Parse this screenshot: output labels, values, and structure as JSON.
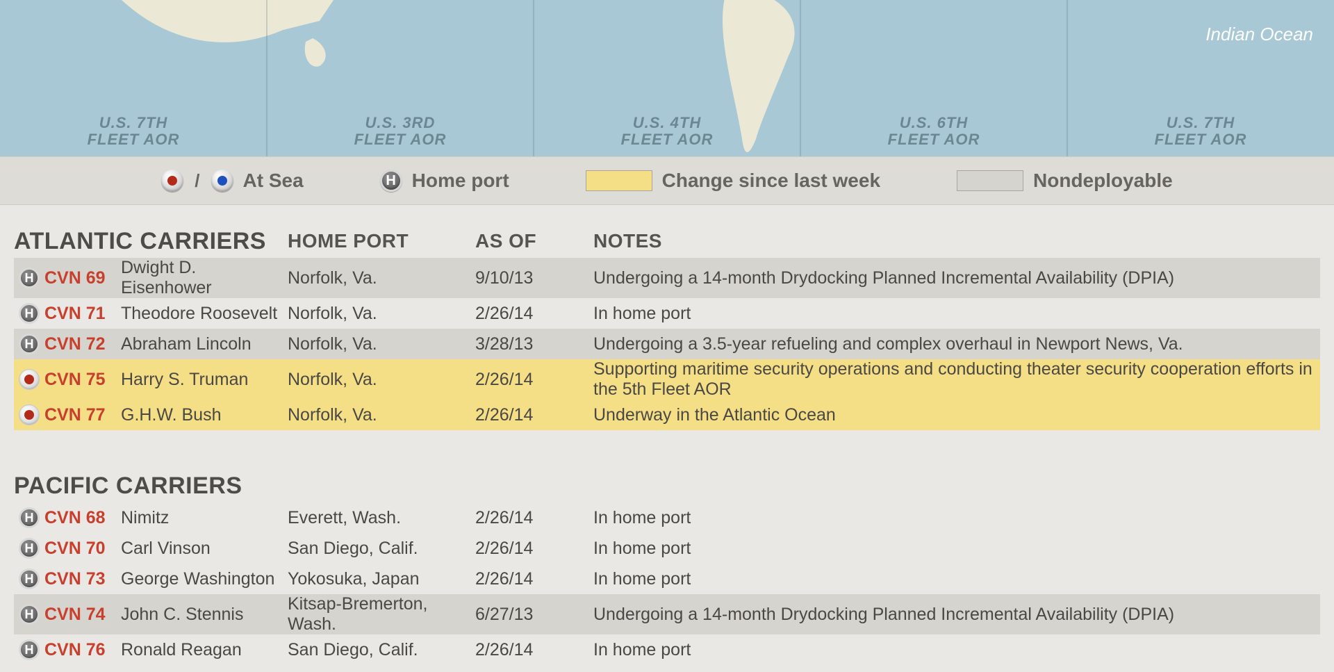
{
  "colors": {
    "page_bg": "#e9e8e4",
    "map_water": "#a7c8d4",
    "map_land": "#ece8d6",
    "ocean_label": "#ffffff",
    "fleet_label": "#6b8793",
    "legend_bg": "#dedcd7",
    "legend_text": "#676560",
    "row_nondeploy": "#d6d4cf",
    "row_changed": "#f4de86",
    "code": "#c8402d",
    "text": "#4a4844",
    "marker_sea_red": "#b42a1a",
    "marker_sea_blue": "#1f4fbf",
    "marker_home": "#6c6c6c"
  },
  "map": {
    "ocean_label": "Indian\nOcean",
    "fleets": [
      "U.S. 7TH\nFLEET AOR",
      "U.S. 3RD\nFLEET AOR",
      "U.S. 4TH\nFLEET AOR",
      "U.S. 6TH\nFLEET AOR",
      "U.S. 7TH\nFLEET AOR"
    ]
  },
  "legend": {
    "at_sea": "At Sea",
    "home_port": "Home port",
    "changed": "Change since last week",
    "nondeploy": "Nondeployable"
  },
  "columns": {
    "homeport": "Home Port",
    "asof": "As Of",
    "notes": "Notes"
  },
  "sections": [
    {
      "title": "ATLANTIC CARRIERS",
      "rows": [
        {
          "status": "home",
          "state": "nondeploy",
          "code": "CVN 69",
          "name": "Dwight D. Eisenhower",
          "homeport": "Norfolk, Va.",
          "asof": "9/10/13",
          "notes": "Undergoing a 14-month Drydocking Planned Incremental Availability (DPIA)"
        },
        {
          "status": "home",
          "state": "normal",
          "code": "CVN 71",
          "name": "Theodore Roosevelt",
          "homeport": "Norfolk, Va.",
          "asof": "2/26/14",
          "notes": "In home port"
        },
        {
          "status": "home",
          "state": "nondeploy",
          "code": "CVN 72",
          "name": "Abraham Lincoln",
          "homeport": "Norfolk, Va.",
          "asof": "3/28/13",
          "notes": "Undergoing a 3.5-year refueling and complex overhaul in Newport News, Va."
        },
        {
          "status": "sea",
          "state": "changed",
          "code": "CVN 75",
          "name": "Harry S. Truman",
          "homeport": "Norfolk, Va.",
          "asof": "2/26/14",
          "notes": "Supporting maritime security operations and conducting theater security cooperation efforts in the 5th Fleet AOR"
        },
        {
          "status": "sea",
          "state": "changed",
          "code": "CVN 77",
          "name": "G.H.W. Bush",
          "homeport": "Norfolk, Va.",
          "asof": "2/26/14",
          "notes": "Underway in the Atlantic Ocean"
        }
      ]
    },
    {
      "title": "PACIFIC CARRIERS",
      "rows": [
        {
          "status": "home",
          "state": "normal",
          "code": "CVN 68",
          "name": "Nimitz",
          "homeport": "Everett, Wash.",
          "asof": "2/26/14",
          "notes": "In home port"
        },
        {
          "status": "home",
          "state": "normal",
          "code": "CVN 70",
          "name": "Carl Vinson",
          "homeport": "San Diego, Calif.",
          "asof": "2/26/14",
          "notes": "In home port"
        },
        {
          "status": "home",
          "state": "normal",
          "code": "CVN 73",
          "name": "George Washington",
          "homeport": "Yokosuka, Japan",
          "asof": "2/26/14",
          "notes": "In home port"
        },
        {
          "status": "home",
          "state": "nondeploy",
          "code": "CVN 74",
          "name": "John C. Stennis",
          "homeport": "Kitsap-Bremerton, Wash.",
          "asof": "6/27/13",
          "notes": "Undergoing a 14-month Drydocking Planned Incremental Availability (DPIA)"
        },
        {
          "status": "home",
          "state": "normal",
          "code": "CVN 76",
          "name": "Ronald Reagan",
          "homeport": "San Diego, Calif.",
          "asof": "2/26/14",
          "notes": "In home port"
        }
      ]
    }
  ]
}
